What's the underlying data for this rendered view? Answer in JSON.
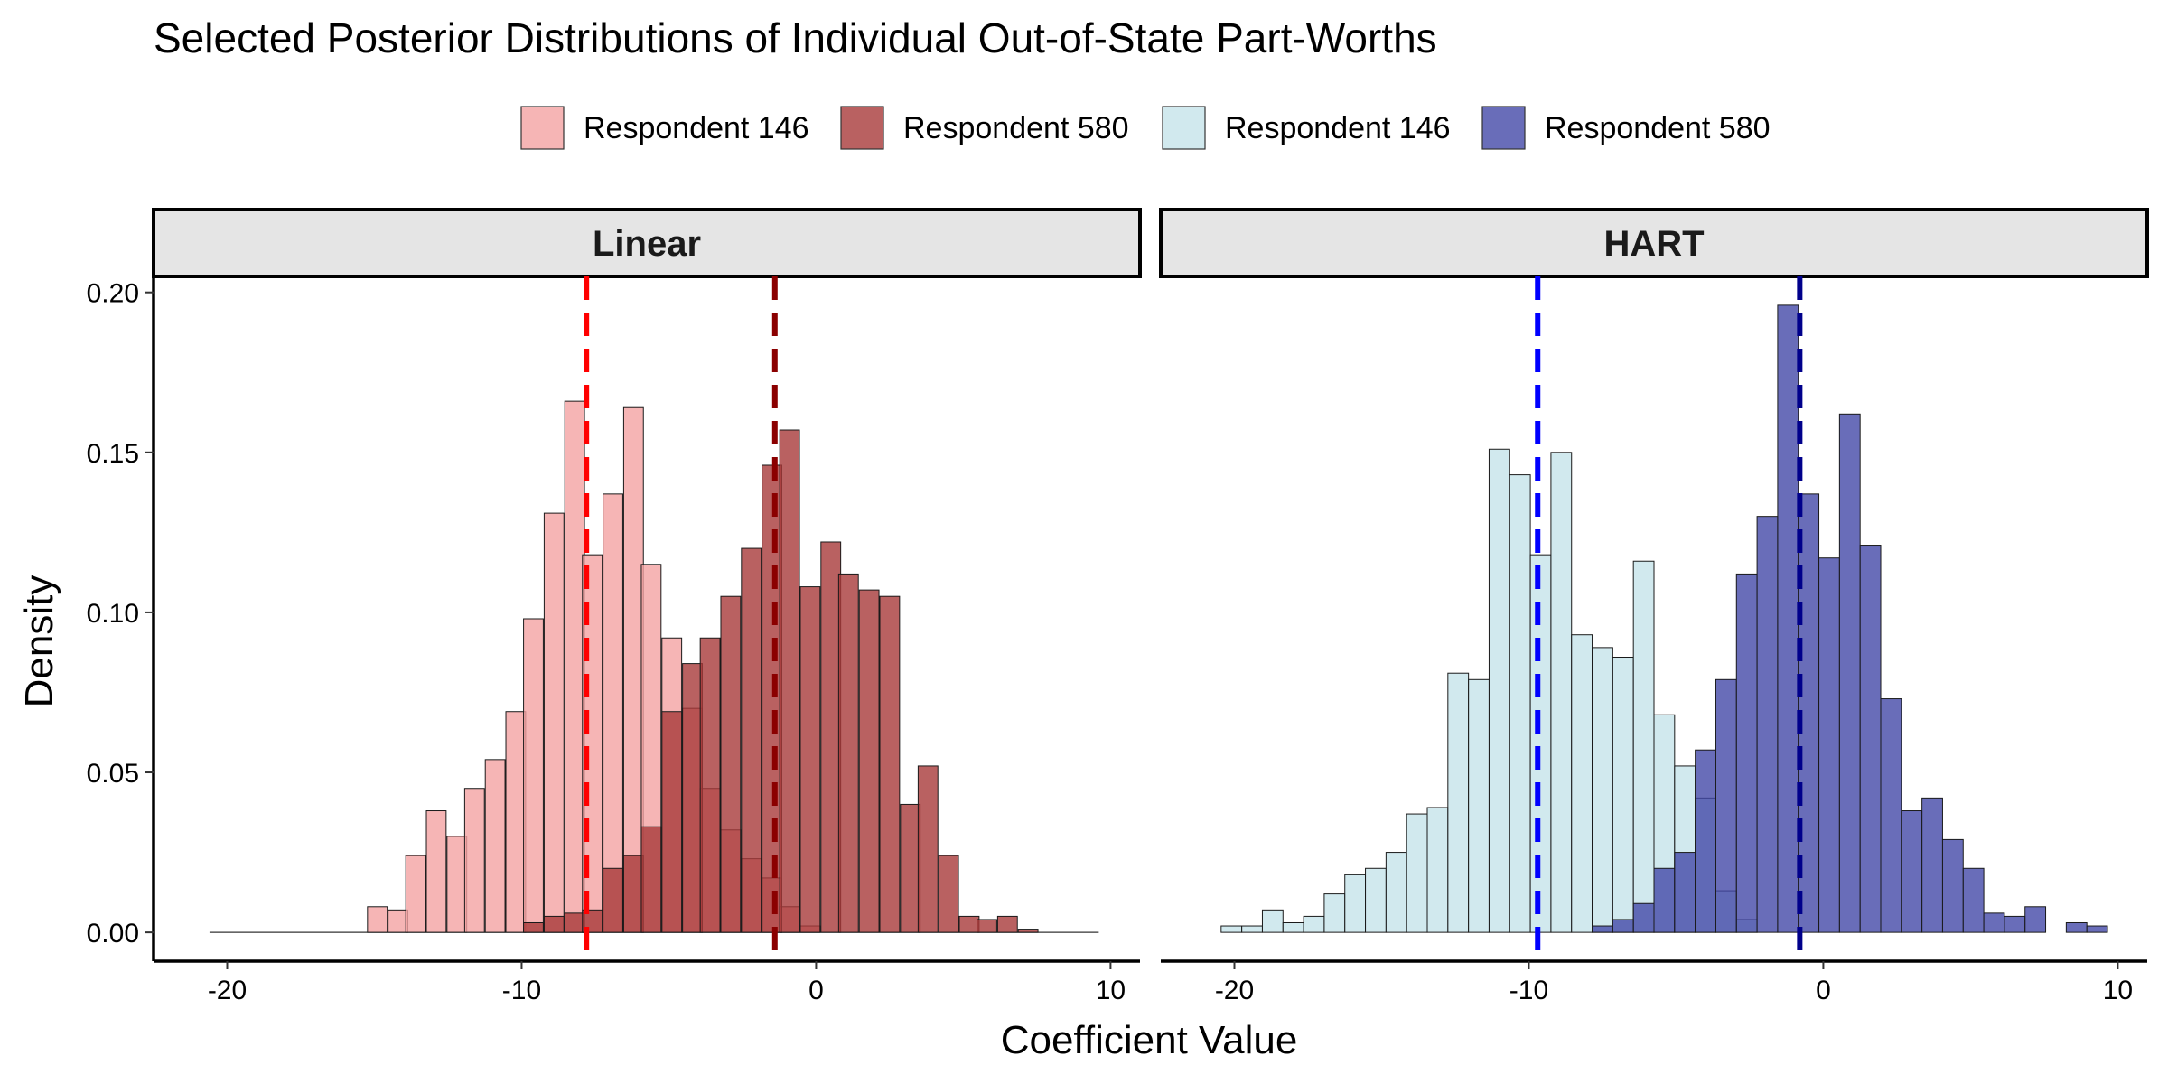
{
  "chart_data": {
    "type": "histogram",
    "title": "Selected Posterior Distributions of Individual Out-of-State Part-Worths",
    "xlabel": "Coefficient Value",
    "ylabel": "Density",
    "xlim": [
      -22.5,
      11
    ],
    "ylim": [
      -0.009,
      0.205
    ],
    "x_ticks": [
      -20,
      -10,
      0,
      10
    ],
    "y_ticks": [
      0,
      0.05,
      0.1,
      0.15,
      0.2
    ],
    "x_tick_labels": [
      "-20",
      "-10",
      "0",
      "10"
    ],
    "y_tick_labels": [
      "0.00",
      "0.05",
      "0.10",
      "0.15",
      "0.20"
    ],
    "grid": false,
    "legend_position": "top",
    "legend": [
      {
        "label": "Respondent 146",
        "color": "#f4a3a3"
      },
      {
        "label": "Respondent 580",
        "color": "#a83a3a"
      },
      {
        "label": "Respondent 146",
        "color": "#c6e3ea"
      },
      {
        "label": "Respondent 580",
        "color": "#4449a8"
      }
    ],
    "panels": [
      {
        "strip_label": "Linear",
        "bin_width": 0.67,
        "baseline": [
          -20.6,
          9.6
        ],
        "series": [
          {
            "name": "Respondent 146",
            "fill": "#f4a3a3",
            "opacity": 0.8,
            "mean_line": -7.8,
            "mean_line_color": "#ff0000",
            "bin_centers": [
              -14.9,
              -14.2,
              -13.6,
              -12.9,
              -12.2,
              -11.6,
              -10.9,
              -10.2,
              -9.6,
              -8.9,
              -8.2,
              -7.6,
              -6.9,
              -6.2,
              -5.6,
              -4.9,
              -4.2,
              -3.6,
              -2.9,
              -2.2,
              -1.5,
              -0.9,
              -0.2
            ],
            "values": [
              0.008,
              0.007,
              0.024,
              0.038,
              0.03,
              0.045,
              0.054,
              0.069,
              0.098,
              0.131,
              0.166,
              0.118,
              0.137,
              0.164,
              0.115,
              0.092,
              0.07,
              0.045,
              0.032,
              0.023,
              0.017,
              0.008,
              0.002
            ]
          },
          {
            "name": "Respondent 580",
            "fill": "#a83a3a",
            "opacity": 0.8,
            "mean_line": -1.4,
            "mean_line_color": "#8b0000",
            "bin_centers": [
              -9.6,
              -8.9,
              -8.2,
              -7.6,
              -6.9,
              -6.2,
              -5.6,
              -4.9,
              -4.2,
              -3.6,
              -2.9,
              -2.2,
              -1.5,
              -0.9,
              -0.2,
              0.5,
              1.1,
              1.8,
              2.5,
              3.2,
              3.8,
              4.5,
              5.2,
              5.8,
              6.5,
              7.2
            ],
            "values": [
              0.003,
              0.005,
              0.006,
              0.007,
              0.02,
              0.024,
              0.033,
              0.069,
              0.084,
              0.092,
              0.105,
              0.12,
              0.146,
              0.157,
              0.108,
              0.122,
              0.112,
              0.107,
              0.105,
              0.04,
              0.052,
              0.024,
              0.005,
              0.004,
              0.005,
              0.001
            ]
          }
        ]
      },
      {
        "strip_label": "HART",
        "bin_width": 0.7,
        "baseline": [],
        "series": [
          {
            "name": "Respondent 146",
            "fill": "#c6e3ea",
            "opacity": 0.8,
            "mean_line": -9.7,
            "mean_line_color": "#0000ff",
            "bin_centers": [
              -20.1,
              -19.4,
              -18.7,
              -18.0,
              -17.3,
              -16.6,
              -15.9,
              -15.2,
              -14.5,
              -13.8,
              -13.1,
              -12.4,
              -11.7,
              -11.0,
              -10.3,
              -9.6,
              -8.9,
              -8.2,
              -7.5,
              -6.8,
              -6.1,
              -5.4,
              -4.7,
              -4.0,
              -3.3,
              -2.6
            ],
            "values": [
              0.002,
              0.002,
              0.007,
              0.003,
              0.005,
              0.012,
              0.018,
              0.02,
              0.025,
              0.037,
              0.039,
              0.081,
              0.079,
              0.151,
              0.143,
              0.118,
              0.15,
              0.093,
              0.089,
              0.086,
              0.116,
              0.068,
              0.052,
              0.042,
              0.013,
              0.004
            ]
          },
          {
            "name": "Respondent 580",
            "fill": "#4449a8",
            "opacity": 0.8,
            "mean_line": -0.8,
            "mean_line_color": "#00008b",
            "bin_centers": [
              -7.5,
              -6.8,
              -6.1,
              -5.4,
              -4.7,
              -4.0,
              -3.3,
              -2.6,
              -1.9,
              -1.2,
              -0.5,
              0.2,
              0.9,
              1.6,
              2.3,
              3.0,
              3.7,
              4.4,
              5.1,
              5.8,
              6.5,
              7.2,
              8.6,
              9.3
            ],
            "values": [
              0.002,
              0.004,
              0.009,
              0.02,
              0.025,
              0.057,
              0.079,
              0.112,
              0.13,
              0.196,
              0.137,
              0.117,
              0.162,
              0.121,
              0.073,
              0.038,
              0.042,
              0.029,
              0.02,
              0.006,
              0.005,
              0.008,
              0.003,
              0.002
            ]
          }
        ]
      }
    ]
  }
}
